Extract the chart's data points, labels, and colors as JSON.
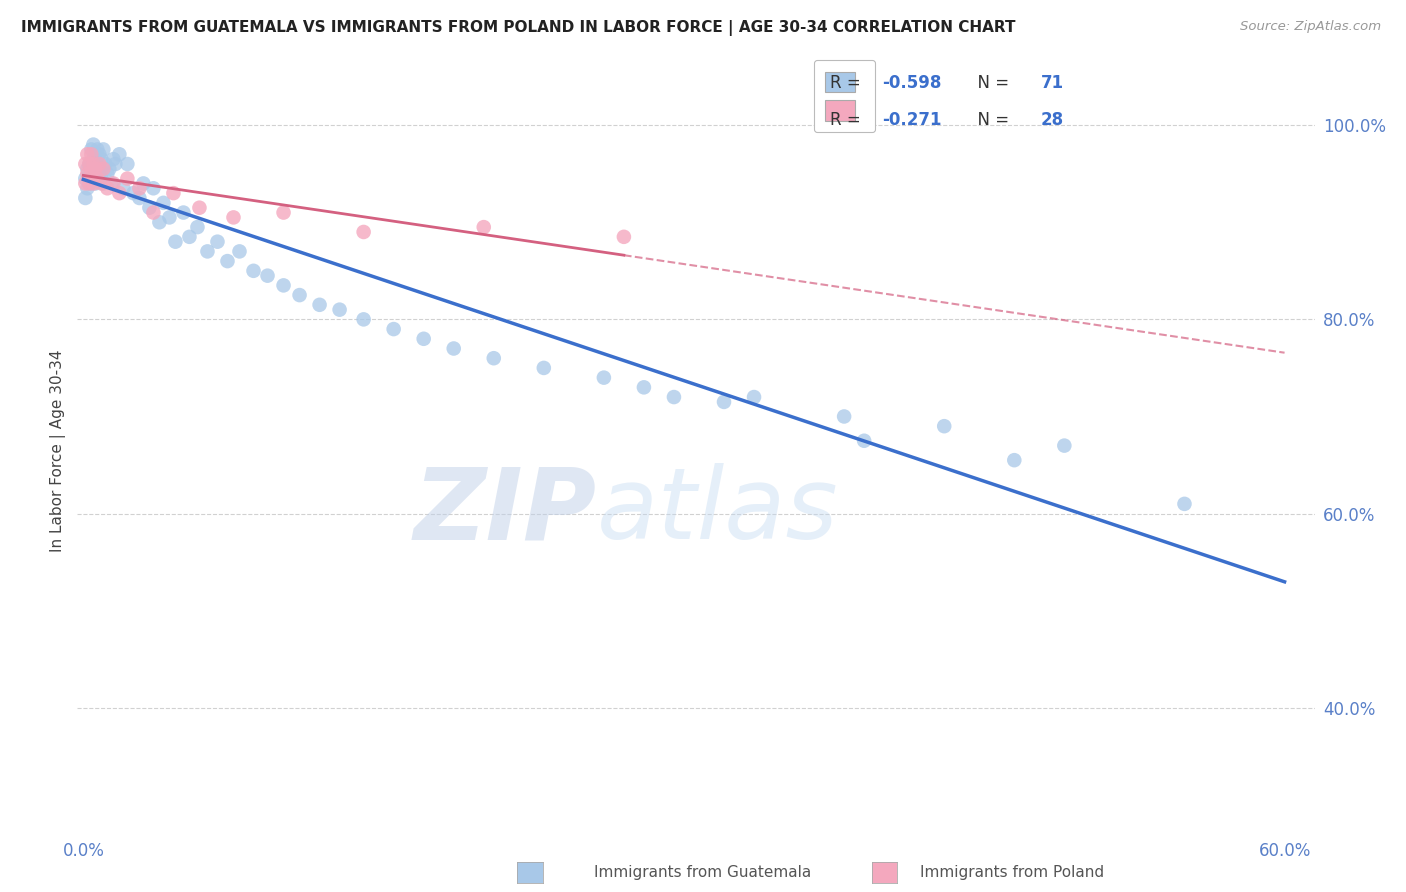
{
  "title": "IMMIGRANTS FROM GUATEMALA VS IMMIGRANTS FROM POLAND IN LABOR FORCE | AGE 30-34 CORRELATION CHART",
  "source": "Source: ZipAtlas.com",
  "ylabel": "In Labor Force | Age 30-34",
  "xlim": [
    -0.003,
    0.615
  ],
  "ylim": [
    0.27,
    1.06
  ],
  "yticks": [
    0.4,
    0.6,
    0.8,
    1.0
  ],
  "xticks": [
    0.0,
    0.1,
    0.2,
    0.3,
    0.4,
    0.5,
    0.6
  ],
  "bg_color": "#ffffff",
  "grid_color": "#cccccc",
  "guatemala_dot_color": "#A8C8E8",
  "poland_dot_color": "#F4A8BE",
  "guatemala_line_color": "#3B6FCC",
  "poland_line_color": "#D46080",
  "poland_line_solid_color": "#D46080",
  "r_guatemala": -0.598,
  "n_guatemala": 71,
  "r_poland": -0.271,
  "n_poland": 28,
  "guatemala_x": [
    0.001,
    0.001,
    0.002,
    0.002,
    0.003,
    0.003,
    0.004,
    0.004,
    0.004,
    0.005,
    0.005,
    0.005,
    0.006,
    0.006,
    0.007,
    0.007,
    0.007,
    0.008,
    0.008,
    0.009,
    0.009,
    0.01,
    0.01,
    0.011,
    0.012,
    0.013,
    0.014,
    0.015,
    0.016,
    0.018,
    0.02,
    0.022,
    0.025,
    0.028,
    0.03,
    0.033,
    0.035,
    0.038,
    0.04,
    0.043,
    0.046,
    0.05,
    0.053,
    0.057,
    0.062,
    0.067,
    0.072,
    0.078,
    0.085,
    0.092,
    0.1,
    0.108,
    0.118,
    0.128,
    0.14,
    0.155,
    0.17,
    0.185,
    0.205,
    0.23,
    0.26,
    0.295,
    0.335,
    0.38,
    0.43,
    0.49,
    0.55,
    0.39,
    0.465,
    0.32,
    0.28
  ],
  "guatemala_y": [
    0.925,
    0.945,
    0.935,
    0.955,
    0.94,
    0.96,
    0.945,
    0.96,
    0.975,
    0.95,
    0.965,
    0.98,
    0.94,
    0.97,
    0.945,
    0.96,
    0.975,
    0.95,
    0.97,
    0.945,
    0.965,
    0.94,
    0.975,
    0.96,
    0.95,
    0.955,
    0.94,
    0.965,
    0.96,
    0.97,
    0.935,
    0.96,
    0.93,
    0.925,
    0.94,
    0.915,
    0.935,
    0.9,
    0.92,
    0.905,
    0.88,
    0.91,
    0.885,
    0.895,
    0.87,
    0.88,
    0.86,
    0.87,
    0.85,
    0.845,
    0.835,
    0.825,
    0.815,
    0.81,
    0.8,
    0.79,
    0.78,
    0.77,
    0.76,
    0.75,
    0.74,
    0.72,
    0.72,
    0.7,
    0.69,
    0.67,
    0.61,
    0.675,
    0.655,
    0.715,
    0.73
  ],
  "poland_x": [
    0.001,
    0.001,
    0.002,
    0.002,
    0.003,
    0.003,
    0.004,
    0.004,
    0.005,
    0.005,
    0.006,
    0.007,
    0.008,
    0.009,
    0.01,
    0.012,
    0.015,
    0.018,
    0.022,
    0.028,
    0.035,
    0.045,
    0.058,
    0.075,
    0.1,
    0.14,
    0.2,
    0.27
  ],
  "poland_y": [
    0.94,
    0.96,
    0.95,
    0.97,
    0.94,
    0.96,
    0.95,
    0.97,
    0.94,
    0.96,
    0.955,
    0.945,
    0.96,
    0.94,
    0.955,
    0.935,
    0.94,
    0.93,
    0.945,
    0.935,
    0.91,
    0.93,
    0.915,
    0.905,
    0.91,
    0.89,
    0.895,
    0.885
  ]
}
